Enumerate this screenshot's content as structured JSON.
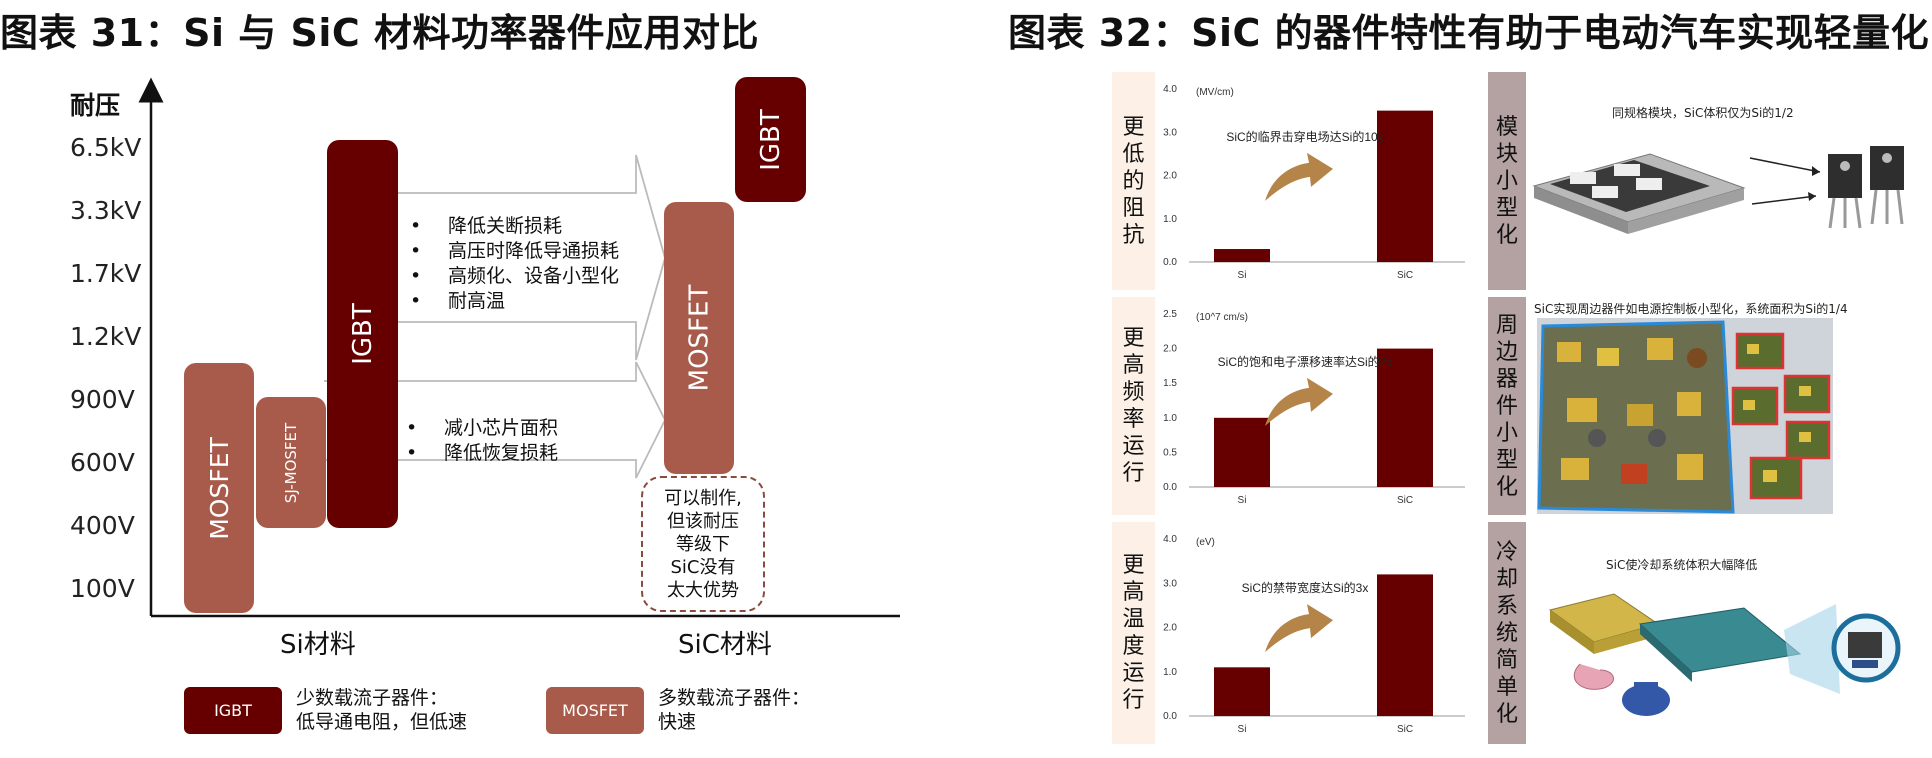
{
  "left": {
    "title": "图表 31：Si 与 SiC 材料功率器件应用对比",
    "y_axis_label": "耐压",
    "voltage_levels": [
      "6.5kV",
      "3.3kV",
      "1.7kV",
      "1.2kV",
      "900V",
      "600V",
      "400V",
      "100V"
    ],
    "x_categories": [
      "Si材料",
      "SiC材料"
    ],
    "bars": {
      "si_mosfet": "MOSFET",
      "si_sj_mosfet": "SJ-MOSFET",
      "si_igbt": "IGBT",
      "sic_mosfet": "MOSFET",
      "sic_igbt": "IGBT"
    },
    "bullets_upper": [
      "降低关断损耗",
      "高压时降低导通损耗",
      "高频化、设备小型化",
      "耐高温"
    ],
    "bullets_lower": [
      "减小芯片面积",
      "降低恢复损耗"
    ],
    "dashed_note": [
      "可以制作,",
      "但该耐压",
      "等级下",
      "SiC没有",
      "太大优势"
    ],
    "legend": {
      "igbt_box": "IGBT",
      "igbt_text": [
        "少数载流子器件：",
        "低导通电阻，但低速"
      ],
      "mosfet_box": "MOSFET",
      "mosfet_text": [
        "多数载流子器件：",
        "快速"
      ]
    },
    "colors": {
      "dark": "#660000",
      "light": "#a95b4b"
    }
  },
  "right": {
    "title": "图表 32：SiC 的器件特性有助于电动汽车实现轻量化",
    "rows": [
      {
        "left_label": "更低的阻抗",
        "right_label": "模块小型化",
        "photo_caption": "同规格模块，SiC体积仅为Si的1/2"
      },
      {
        "left_label": "更高频率运行",
        "right_label": "周边器件小型化",
        "photo_caption": "SiC实现周边器件如电源控制板小型化，系统面积为Si的1/4"
      },
      {
        "left_label": "更高温度运行",
        "right_label": "冷却系统简单化",
        "photo_caption": "SiC使冷却系统体积大幅降低"
      }
    ]
  },
  "chart_data": [
    {
      "type": "bar",
      "title": "",
      "unit_label": "(MV/cm)",
      "annotation": "SiC的临界击穿电场达Si的10x",
      "categories": [
        "Si",
        "SiC"
      ],
      "values": [
        0.3,
        3.5
      ],
      "ylim": [
        0,
        4.0
      ],
      "yticks": [
        "0.0",
        "1.0",
        "2.0",
        "3.0",
        "4.0"
      ],
      "bar_color": "#660000"
    },
    {
      "type": "bar",
      "title": "",
      "unit_label": "(10^7 cm/s)",
      "annotation": "SiC的饱和电子漂移速率达Si的2x",
      "categories": [
        "Si",
        "SiC"
      ],
      "values": [
        1.0,
        2.0
      ],
      "ylim": [
        0,
        2.5
      ],
      "yticks": [
        "0.0",
        "0.5",
        "1.0",
        "1.5",
        "2.0",
        "2.5"
      ],
      "bar_color": "#660000"
    },
    {
      "type": "bar",
      "title": "",
      "unit_label": "(eV)",
      "annotation": "SiC的禁带宽度达Si的3x",
      "categories": [
        "Si",
        "SiC"
      ],
      "values": [
        1.1,
        3.2
      ],
      "ylim": [
        0,
        4.0
      ],
      "yticks": [
        "0.0",
        "1.0",
        "2.0",
        "3.0",
        "4.0"
      ],
      "bar_color": "#660000"
    }
  ]
}
